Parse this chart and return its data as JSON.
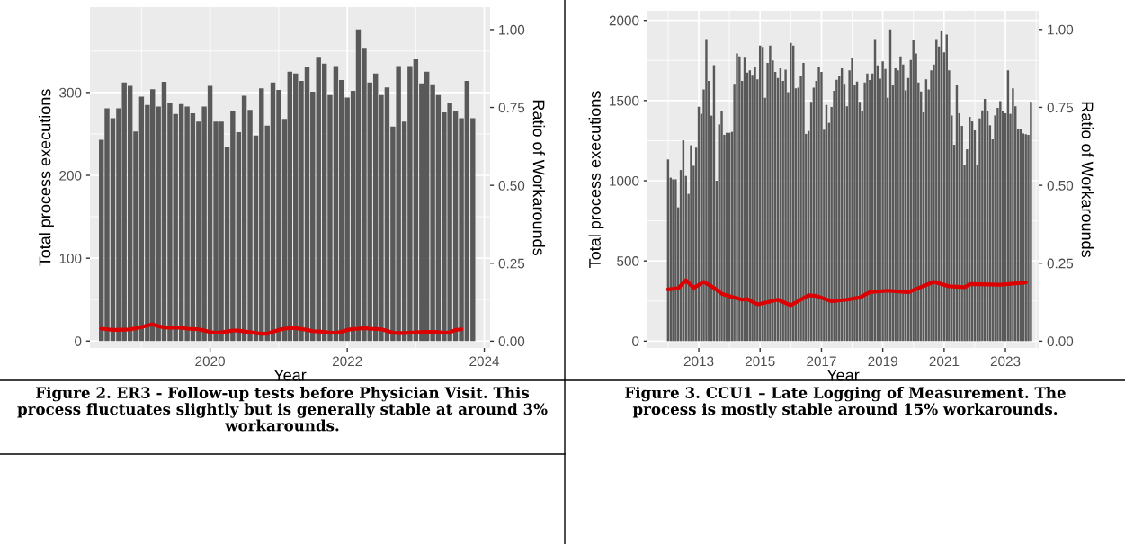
{
  "chart_data": [
    {
      "type": "bar",
      "xlabel": "Year",
      "ylabel": "Total process executions",
      "y2label": "Ratio of Workarounds",
      "annotations": [
        "Figure 2. ER3 - Follow-up tests before Physician Visit. This process fluctuates slightly but is generally stable at around 3% workarounds."
      ],
      "x": [
        "2018-06",
        "2018-07",
        "2018-08",
        "2018-09",
        "2018-10",
        "2018-11",
        "2018-12",
        "2019-01",
        "2019-02",
        "2019-03",
        "2019-04",
        "2019-05",
        "2019-06",
        "2019-07",
        "2019-08",
        "2019-09",
        "2019-10",
        "2019-11",
        "2019-12",
        "2020-01",
        "2020-02",
        "2020-03",
        "2020-04",
        "2020-05",
        "2020-06",
        "2020-07",
        "2020-08",
        "2020-09",
        "2020-10",
        "2020-11",
        "2020-12",
        "2021-01",
        "2021-02",
        "2021-03",
        "2021-04",
        "2021-05",
        "2021-06",
        "2021-07",
        "2021-08",
        "2021-09",
        "2021-10",
        "2021-11",
        "2021-12",
        "2022-01",
        "2022-02",
        "2022-03",
        "2022-04",
        "2022-05",
        "2022-06",
        "2022-07",
        "2022-08",
        "2022-09",
        "2022-10",
        "2022-11",
        "2022-12",
        "2023-01",
        "2023-02",
        "2023-03",
        "2023-04",
        "2023-05",
        "2023-06",
        "2023-07",
        "2023-08",
        "2023-09",
        "2023-10",
        "2023-11"
      ],
      "series": [
        {
          "color": "#595959",
          "values": [
            243,
            281,
            269,
            281,
            312,
            308,
            253,
            295,
            285,
            304,
            283,
            313,
            288,
            274,
            286,
            283,
            275,
            265,
            283,
            308,
            265,
            265,
            234,
            278,
            252,
            296,
            279,
            248,
            305,
            260,
            312,
            303,
            268,
            325,
            323,
            314,
            331,
            301,
            343,
            335,
            297,
            332,
            315,
            294,
            302,
            376,
            354,
            312,
            323,
            297,
            306,
            259,
            332,
            265,
            332,
            340,
            311,
            325,
            310,
            297,
            276,
            287,
            278,
            269,
            314,
            269
          ]
        },
        {
          "type": "line",
          "axis": "y2",
          "color": "#dd0000",
          "line_style": "solid",
          "values": [
            0.04,
            0.038,
            0.036,
            0.036,
            0.037,
            0.038,
            0.041,
            0.045,
            0.05,
            0.054,
            0.048,
            0.044,
            0.043,
            0.044,
            0.043,
            0.04,
            0.039,
            0.038,
            0.034,
            0.029,
            0.027,
            0.028,
            0.031,
            0.034,
            0.034,
            0.031,
            0.029,
            0.026,
            0.024,
            0.024,
            0.03,
            0.036,
            0.04,
            0.042,
            0.042,
            0.039,
            0.036,
            0.032,
            0.031,
            0.03,
            0.027,
            0.027,
            0.03,
            0.036,
            0.039,
            0.04,
            0.042,
            0.04,
            0.039,
            0.038,
            0.033,
            0.027,
            0.026,
            0.026,
            0.027,
            0.028,
            0.029,
            0.03,
            0.03,
            0.029,
            0.027,
            0.028,
            0.036,
            0.038,
            null,
            null
          ]
        }
      ],
      "xlim": [
        "2018-04",
        "2024-02"
      ],
      "xticks": [
        "2020",
        "2022",
        "2024"
      ],
      "ylim": [
        -8.4,
        403
      ],
      "yticks": [
        0,
        100,
        200,
        300
      ],
      "y2lim": [
        -0.022,
        1.072
      ],
      "y2ticks": [
        {
          "value": 0,
          "label": "0.00"
        },
        {
          "value": 0.25,
          "label": "0.25"
        },
        {
          "value": 0.5,
          "label": "0.50"
        },
        {
          "value": 0.75,
          "label": "0.75"
        },
        {
          "value": 1,
          "label": "1.00"
        }
      ],
      "grid": true,
      "legend": false,
      "marker": "none"
    },
    {
      "type": "bar",
      "xlabel": "Year",
      "ylabel": "Total process executions",
      "y2label": "Ratio of Workarounds",
      "annotations": [
        "Figure 3. CCU1 – Late Logging of Measurement. The process is mostly stable around 15% workarounds."
      ],
      "x": [
        "2012-01",
        "2012-02",
        "2012-03",
        "2012-04",
        "2012-05",
        "2012-06",
        "2012-07",
        "2012-08",
        "2012-09",
        "2012-10",
        "2012-11",
        "2012-12",
        "2013-01",
        "2013-02",
        "2013-03",
        "2013-04",
        "2013-05",
        "2013-06",
        "2013-07",
        "2013-08",
        "2013-09",
        "2013-10",
        "2013-11",
        "2013-12",
        "2014-01",
        "2014-02",
        "2014-03",
        "2014-04",
        "2014-05",
        "2014-06",
        "2014-07",
        "2014-08",
        "2014-09",
        "2014-10",
        "2014-11",
        "2014-12",
        "2015-01",
        "2015-02",
        "2015-03",
        "2015-04",
        "2015-05",
        "2015-06",
        "2015-07",
        "2015-08",
        "2015-09",
        "2015-10",
        "2015-11",
        "2015-12",
        "2016-01",
        "2016-02",
        "2016-03",
        "2016-04",
        "2016-05",
        "2016-06",
        "2016-07",
        "2016-08",
        "2016-09",
        "2016-10",
        "2016-11",
        "2016-12",
        "2017-01",
        "2017-02",
        "2017-03",
        "2017-04",
        "2017-05",
        "2017-06",
        "2017-07",
        "2017-08",
        "2017-09",
        "2017-10",
        "2017-11",
        "2017-12",
        "2018-01",
        "2018-02",
        "2018-03",
        "2018-04",
        "2018-05",
        "2018-06",
        "2018-07",
        "2018-08",
        "2018-09",
        "2018-10",
        "2018-11",
        "2018-12",
        "2019-01",
        "2019-02",
        "2019-03",
        "2019-04",
        "2019-05",
        "2019-06",
        "2019-07",
        "2019-08",
        "2019-09",
        "2019-10",
        "2019-11",
        "2019-12",
        "2020-01",
        "2020-02",
        "2020-03",
        "2020-04",
        "2020-05",
        "2020-06",
        "2020-07",
        "2020-08",
        "2020-09",
        "2020-10",
        "2020-11",
        "2020-12",
        "2021-01",
        "2021-02",
        "2021-03",
        "2021-04",
        "2021-05",
        "2021-06",
        "2021-07",
        "2021-08",
        "2021-09",
        "2021-10",
        "2021-11",
        "2021-12",
        "2022-01",
        "2022-02",
        "2022-03",
        "2022-04",
        "2022-05",
        "2022-06",
        "2022-07",
        "2022-08",
        "2022-09",
        "2022-10",
        "2022-11",
        "2022-12",
        "2023-01",
        "2023-02",
        "2023-03",
        "2023-04",
        "2023-05",
        "2023-06",
        "2023-07",
        "2023-08",
        "2023-09",
        "2023-10",
        "2023-11"
      ],
      "series": [
        {
          "color": "#595959",
          "values": [
            1133,
            1019,
            1009,
            1009,
            834,
            1067,
            1252,
            1030,
            918,
            1221,
            1093,
            1206,
            1462,
            1417,
            1570,
            1884,
            1622,
            1406,
            1721,
            1000,
            1351,
            1436,
            1286,
            1299,
            1299,
            1305,
            1604,
            1794,
            1776,
            1622,
            1772,
            1675,
            1688,
            1660,
            1710,
            1632,
            1843,
            1834,
            1518,
            1735,
            1843,
            1750,
            1679,
            1641,
            1701,
            1622,
            1693,
            1553,
            1860,
            1843,
            1576,
            1581,
            1650,
            1735,
            1292,
            1310,
            1492,
            1581,
            1622,
            1712,
            1679,
            1318,
            1473,
            1361,
            1460,
            1561,
            1630,
            1650,
            1701,
            1604,
            1464,
            1688,
            1766,
            1596,
            1619,
            1492,
            1436,
            1613,
            1669,
            1628,
            1669,
            1884,
            1720,
            1637,
            1744,
            1697,
            1518,
            1944,
            1594,
            1701,
            1688,
            1776,
            1725,
            1563,
            1641,
            1753,
            1875,
            1794,
            1613,
            1557,
            1426,
            1632,
            1570,
            1688,
            1725,
            1884,
            1837,
            1936,
            1800,
            1912,
            1688,
            1407,
            1224,
            1598,
            1421,
            1342,
            1099,
            1196,
            1398,
            1370,
            1314,
            1099,
            1389,
            1439,
            1510,
            1436,
            1346,
            1258,
            1407,
            1454,
            1497,
            1436,
            1421,
            1688,
            1417,
            1576,
            1464,
            1323,
            1323,
            1295,
            1290,
            1286,
            1492
          ]
        },
        {
          "type": "line",
          "axis": "y2",
          "color": "#dd0000",
          "line_style": "solid",
          "x": [
            "2012-01",
            "2012-05",
            "2012-08",
            "2012-11",
            "2013-03",
            "2013-07",
            "2013-10",
            "2014-02",
            "2014-06",
            "2014-08",
            "2014-12",
            "2015-04",
            "2015-08",
            "2016-01",
            "2016-08",
            "2016-11",
            "2017-05",
            "2017-11",
            "2018-04",
            "2018-08",
            "2019-03",
            "2019-11",
            "2020-09",
            "2021-03",
            "2021-09",
            "2021-11",
            "2022-11",
            "2023-09"
          ],
          "values": [
            0.166,
            0.17,
            0.195,
            0.171,
            0.19,
            0.171,
            0.152,
            0.142,
            0.133,
            0.135,
            0.118,
            0.125,
            0.133,
            0.115,
            0.147,
            0.145,
            0.128,
            0.133,
            0.14,
            0.157,
            0.162,
            0.157,
            0.19,
            0.176,
            0.173,
            0.183,
            0.181,
            0.188
          ]
        }
      ],
      "xlim": [
        "2011-05",
        "2024-02"
      ],
      "xticks": [
        "2013",
        "2015",
        "2017",
        "2019",
        "2021",
        "2023"
      ],
      "ylim": [
        -43,
        2060
      ],
      "yticks": [
        0,
        500,
        1000,
        1500,
        2000
      ],
      "y2lim": [
        -0.022,
        1.06
      ],
      "y2ticks": [
        {
          "value": 0,
          "label": "0.00"
        },
        {
          "value": 0.25,
          "label": "0.25"
        },
        {
          "value": 0.5,
          "label": "0.50"
        },
        {
          "value": 0.75,
          "label": "0.75"
        },
        {
          "value": 1,
          "label": "1.00"
        }
      ],
      "grid": true,
      "legend": false,
      "marker": "none"
    }
  ]
}
